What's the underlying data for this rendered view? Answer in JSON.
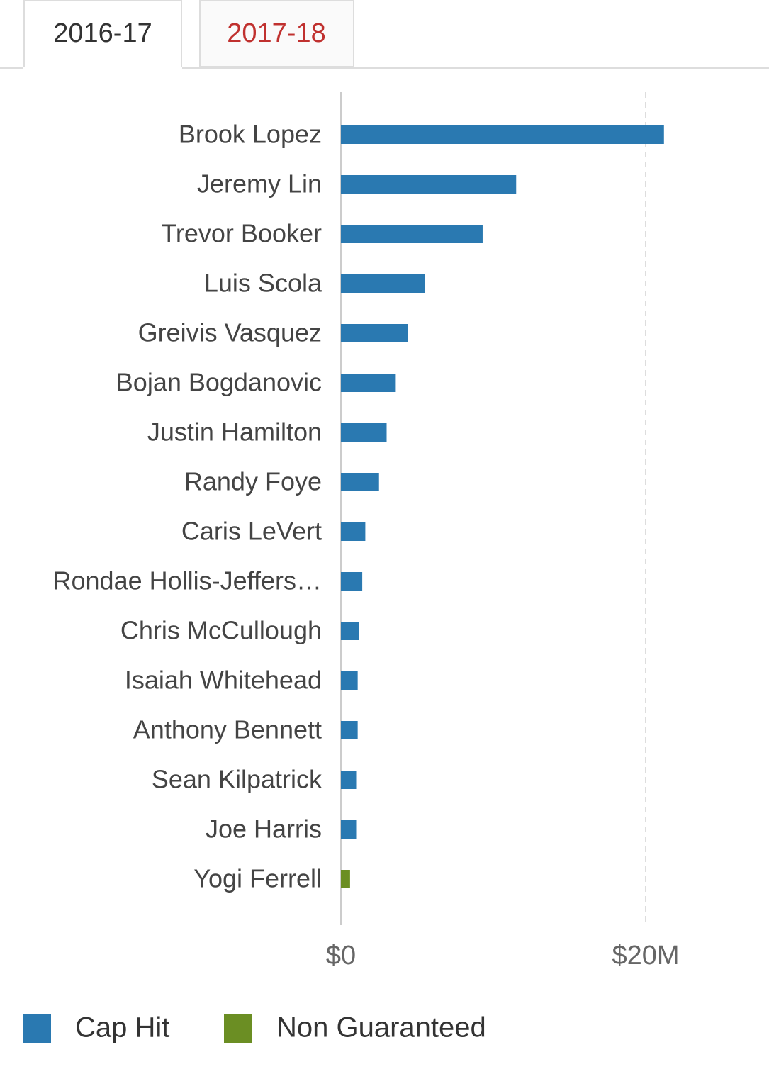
{
  "tabs": [
    "2016-17",
    "2017-18"
  ],
  "chart_data": {
    "type": "bar",
    "orientation": "horizontal",
    "categories": [
      "Brook Lopez",
      "Jeremy Lin",
      "Trevor Booker",
      "Luis Scola",
      "Greivis Vasquez",
      "Bojan Bogdanovic",
      "Justin Hamilton",
      "Randy Foye",
      "Caris LeVert",
      "Rondae Hollis-Jeffers…",
      "Chris McCullough",
      "Isaiah Whitehead",
      "Anthony Bennett",
      "Sean Kilpatrick",
      "Joe Harris",
      "Yogi Ferrell"
    ],
    "series": [
      {
        "name": "Cap Hit",
        "color": "#2a79b1",
        "values": [
          21.2,
          11.5,
          9.3,
          5.5,
          4.4,
          3.6,
          3.0,
          2.5,
          1.6,
          1.4,
          1.2,
          1.1,
          1.1,
          1.0,
          1.0,
          null
        ]
      },
      {
        "name": "Non Guaranteed",
        "color": "#6b8e23",
        "values": [
          null,
          null,
          null,
          null,
          null,
          null,
          null,
          null,
          null,
          null,
          null,
          null,
          null,
          null,
          null,
          0.6
        ]
      }
    ],
    "xlim": [
      0,
      25
    ],
    "xticks": [
      {
        "value": 0,
        "label": "$0"
      },
      {
        "value": 20,
        "label": "$20M"
      }
    ],
    "legend": "bottom-left"
  }
}
